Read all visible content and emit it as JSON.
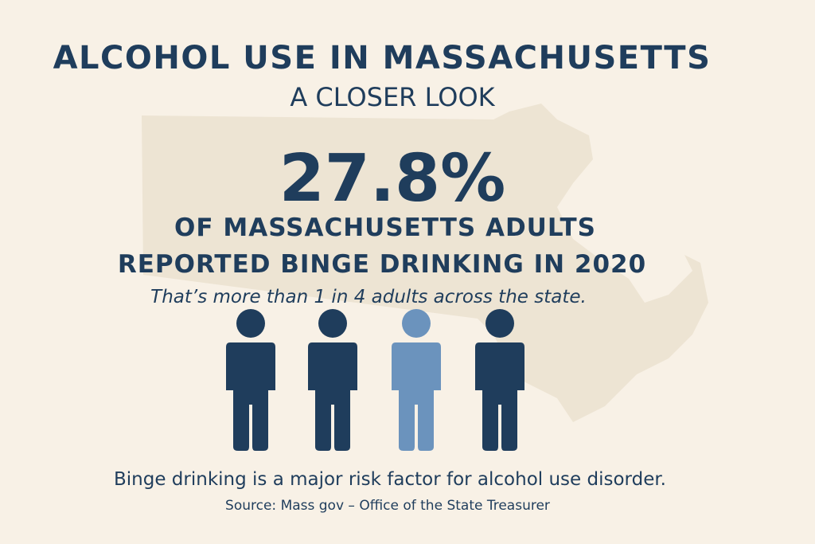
{
  "header": {
    "title": "ALCOHOL USE IN MASSACHUSETTS",
    "subtitle": "A CLOSER LOOK"
  },
  "stat": {
    "value": "27.8%",
    "line_1": "OF MASSACHUSETTS ADULTS",
    "line_2": "REPORTED BINGE DRINKING IN 2020",
    "note": "That’s more than 1 in 4 adults across the state."
  },
  "footer": {
    "message": "Binge drinking is a major risk factor for alcohol use disorder.",
    "source": "Source: Mass gov – Office of the State Treasurer"
  }
}
